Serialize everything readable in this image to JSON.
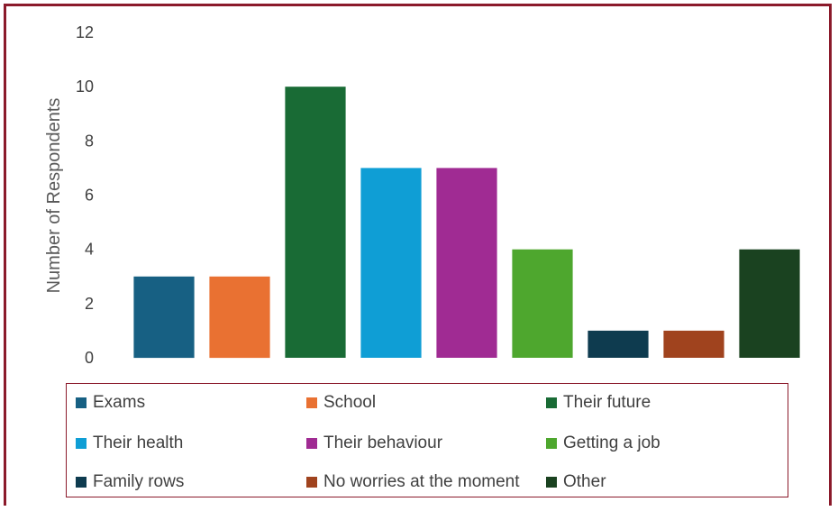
{
  "chart_data": {
    "type": "bar",
    "title": "",
    "xlabel": "",
    "ylabel": "Number of Respondents",
    "ylim": [
      0,
      12
    ],
    "yticks": [
      0,
      2,
      4,
      6,
      8,
      10,
      12
    ],
    "grid": false,
    "legend_position": "bottom",
    "categories": [
      "Exams",
      "School",
      "Their future",
      "Their health",
      "Their behaviour",
      "Getting a job",
      "Family rows",
      "No worries at the moment",
      "Other"
    ],
    "values": [
      3,
      3,
      10,
      7,
      7,
      4,
      1,
      1,
      4
    ],
    "colors": [
      "#176083",
      "#e97132",
      "#196b35",
      "#0f9ed5",
      "#a02b93",
      "#4ea72e",
      "#0e3b4f",
      "#a0431e",
      "#1a4220"
    ]
  }
}
